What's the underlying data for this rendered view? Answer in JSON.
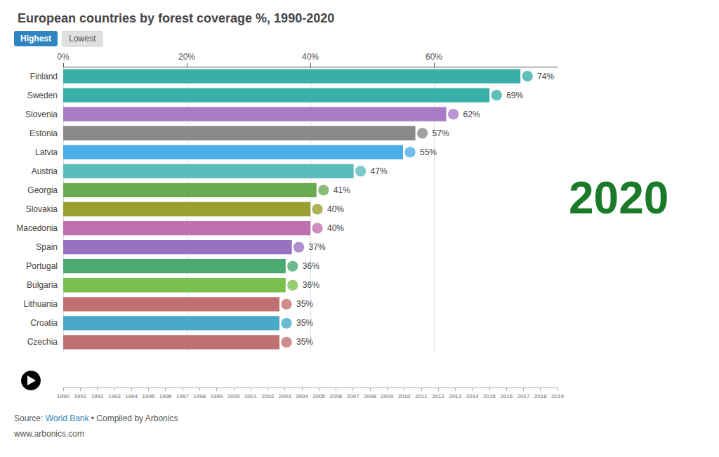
{
  "chart_data": [
    {
      "type": "bar",
      "title": "European countries by forest coverage %, 1990-2020",
      "orientation": "horizontal",
      "categories": [
        "Finland",
        "Sweden",
        "Slovenia",
        "Estonia",
        "Latvia",
        "Austria",
        "Georgia",
        "Slovakia",
        "Macedonia",
        "Spain",
        "Portugal",
        "Bulgaria",
        "Lithuania",
        "Croatia",
        "Czechia"
      ],
      "values": [
        74,
        69,
        62,
        57,
        55,
        47,
        41,
        40,
        40,
        37,
        36,
        36,
        35,
        35,
        35
      ],
      "value_labels": [
        "74%",
        "69%",
        "62%",
        "57%",
        "55%",
        "47%",
        "41%",
        "40%",
        "40%",
        "37%",
        "36%",
        "36%",
        "35%",
        "35%",
        "35%"
      ],
      "data_labels": true,
      "colors": [
        "#3aafa9",
        "#3aafa9",
        "#a97bc7",
        "#8a8a8a",
        "#4baee8",
        "#5bbcbc",
        "#6aaa50",
        "#9aa030",
        "#c070b0",
        "#9a70c0",
        "#4aaa70",
        "#7ac050",
        "#c07070",
        "#4aa8c8",
        "#c07070"
      ],
      "xlim": [
        0,
        80
      ],
      "xticks": [
        {
          "value": 0,
          "label": "0%"
        },
        {
          "value": 20,
          "label": "20%"
        },
        {
          "value": 40,
          "label": "40%"
        },
        {
          "value": 60,
          "label": "60%"
        }
      ],
      "grid": true,
      "annotations": [
        {
          "text": "Highest",
          "color": "#2e86c1"
        },
        {
          "text": "Lowest",
          "color": "#e0e0e0"
        },
        {
          "text": "2020",
          "color": "#1a7a2a"
        },
        {
          "text": "Source: "
        },
        {
          "text": "World Bank",
          "color": "#2e86c1"
        },
        {
          "text": " • Compiled by Arbonics"
        },
        {
          "text": "www.arbonics.com"
        }
      ]
    },
    {
      "type": "timeline",
      "categories": [
        "1990",
        "1991",
        "1992",
        "1993",
        "1994",
        "1995",
        "1996",
        "1997",
        "1998",
        "1999",
        "2000",
        "2001",
        "2002",
        "2003",
        "2004",
        "2005",
        "2006",
        "2007",
        "2008",
        "2009",
        "2010",
        "2011",
        "2012",
        "2013",
        "2014",
        "2015",
        "2016",
        "2017",
        "2018",
        "2019"
      ]
    }
  ]
}
